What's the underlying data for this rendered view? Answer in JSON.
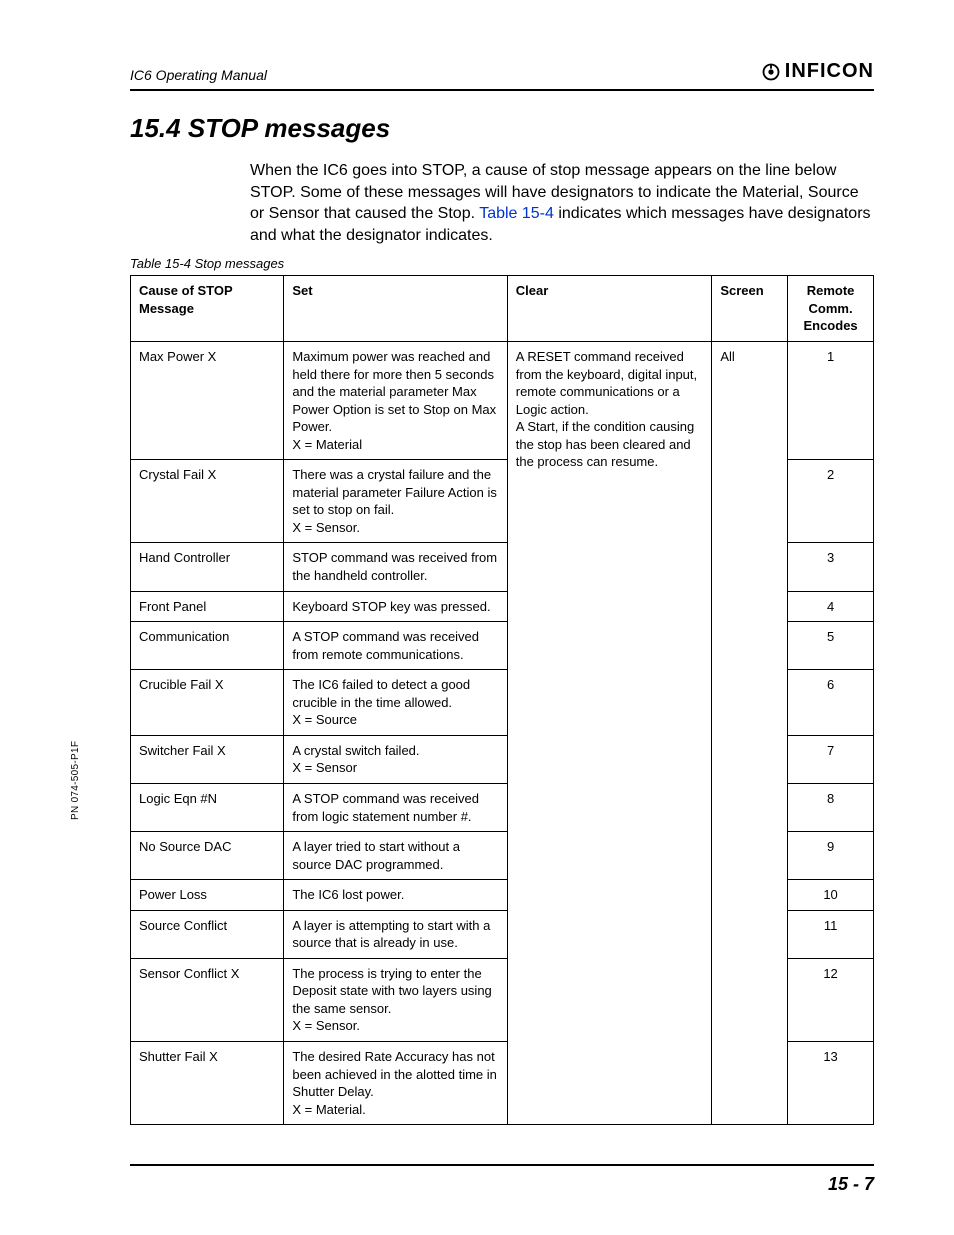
{
  "meta": {
    "doc_title": "IC6 Operating Manual",
    "brand": "INFICON",
    "side_label": "PN 074-505-P1F",
    "page_number": "15 - 7"
  },
  "section": {
    "heading": "15.4  STOP messages",
    "intro_before_xref": "When the IC6 goes into STOP, a cause of stop message appears on the line below STOP. Some of these messages will have designators to indicate the Material, Source or Sensor that caused the Stop. ",
    "xref": "Table 15-4",
    "intro_after_xref": " indicates which messages have designators and what the designator indicates."
  },
  "table": {
    "caption": "Table 15-4  Stop messages",
    "headers": {
      "cause": "Cause of STOP Message",
      "set": "Set",
      "clear": "Clear",
      "screen": "Screen",
      "encodes": "Remote Comm. Encodes"
    },
    "clear_text": "A RESET command received from the keyboard, digital input, remote communications or a Logic action.\nA Start, if the condition causing the stop has been cleared and the process can resume.",
    "screen_text": "All",
    "rows": [
      {
        "cause": "Max Power X",
        "set": "Maximum power was reached and held there for more then 5 seconds and the material parameter Max Power Option is set to Stop on Max Power.\nX = Material",
        "enc": "1"
      },
      {
        "cause": "Crystal Fail X",
        "set": "There was a crystal failure and the material parameter Failure Action is set to stop on fail.\nX = Sensor.",
        "enc": "2"
      },
      {
        "cause": "Hand Controller",
        "set": "STOP command was received from the handheld controller.",
        "enc": "3"
      },
      {
        "cause": "Front Panel",
        "set": "Keyboard STOP key was pressed.",
        "enc": "4"
      },
      {
        "cause": "Communication",
        "set": "A STOP command was received from remote communications.",
        "enc": "5"
      },
      {
        "cause": "Crucible Fail X",
        "set": "The IC6 failed to detect a good crucible in the time allowed.\nX = Source",
        "enc": "6"
      },
      {
        "cause": "Switcher Fail X",
        "set": "A crystal switch failed.\nX = Sensor",
        "enc": "7"
      },
      {
        "cause": "Logic Eqn #N",
        "set": "A STOP command was received from logic statement number #.",
        "enc": "8"
      },
      {
        "cause": "No Source DAC",
        "set": "A layer tried to start without a source DAC programmed.",
        "enc": "9"
      },
      {
        "cause": "Power Loss",
        "set": "The IC6 lost power.",
        "enc": "10"
      },
      {
        "cause": "Source Conflict",
        "set": "A layer is attempting to start with a source that is already in use.",
        "enc": "11"
      },
      {
        "cause": "Sensor Conflict X",
        "set": "The process is trying to enter the Deposit state with two layers using the same sensor.\nX = Sensor.",
        "enc": "12"
      },
      {
        "cause": "Shutter Fail X",
        "set": "The desired Rate Accuracy has not been achieved in the alotted time in Shutter Delay.\nX = Material.",
        "enc": "13"
      }
    ]
  },
  "style": {
    "link_color": "#0033cc",
    "rule_color": "#000000",
    "body_font_size_pt": 12,
    "heading_font_size_pt": 20,
    "caption_font_size_pt": 10,
    "table_font_size_pt": 10
  }
}
